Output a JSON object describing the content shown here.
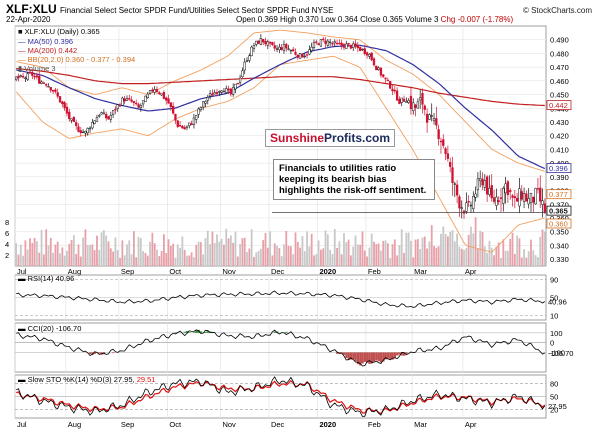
{
  "header": {
    "symbol": "XLF:XLU",
    "description": "Financial Select Sector SPDR Fund/Utilities Select Sector SPDR Fund NYSE",
    "date": "22-Apr-2020",
    "open": "Open 0.369",
    "high": "High 0.370",
    "low": "Low 0.364",
    "close": "Close 0.365",
    "volume": "Volume 3",
    "change": "Chg -0.007 (-1.78%)",
    "credit": "© StockCharts.com"
  },
  "legend": {
    "main": "XLF:XLU (Daily) 0.365",
    "ma50": "MA(50) 0.396",
    "ma200": "MA(200) 0.442",
    "bb": "BB(20,2.0) 0.360 - 0.377 - 0.394",
    "volume": "Volume 3"
  },
  "annotations": {
    "brand_a": "Sunshine",
    "brand_b": "Profits.com",
    "note": "Financials to utilities ratio keeping its bearish bias highlights the risk-off sentiment."
  },
  "colors": {
    "up": "#111111",
    "down": "#d01030",
    "ma50": "#3030a0",
    "ma200": "#c02020",
    "bb": "#f0a060",
    "volume": "#c8c8c8",
    "volume_down": "#e8a0a8",
    "rsi": "#000000",
    "positive_fill": "#3a8a3a",
    "negative_fill": "#c05050",
    "sto_k": "#000000",
    "sto_d": "#e01010"
  },
  "chart_data": [
    {
      "type": "candlestick",
      "title": "XLF:XLU (Daily)",
      "x_labels": [
        "Jul",
        "Aug",
        "Sep",
        "Oct",
        "Nov",
        "Dec",
        "2020",
        "Feb",
        "Mar",
        "Apr"
      ],
      "ylim": [
        0.325,
        0.5
      ],
      "yticks": [
        0.33,
        0.34,
        0.35,
        0.36,
        0.37,
        0.38,
        0.39,
        0.4,
        0.41,
        0.42,
        0.43,
        0.44,
        0.45,
        0.46,
        0.47,
        0.48,
        0.49
      ],
      "close_path": [
        0.462,
        0.462,
        0.465,
        0.46,
        0.458,
        0.452,
        0.443,
        0.432,
        0.425,
        0.422,
        0.43,
        0.437,
        0.432,
        0.44,
        0.447,
        0.445,
        0.44,
        0.448,
        0.455,
        0.45,
        0.443,
        0.428,
        0.425,
        0.43,
        0.44,
        0.448,
        0.452,
        0.455,
        0.45,
        0.46,
        0.475,
        0.486,
        0.49,
        0.486,
        0.483,
        0.485,
        0.482,
        0.478,
        0.48,
        0.487,
        0.489,
        0.488,
        0.486,
        0.486,
        0.485,
        0.483,
        0.48,
        0.47,
        0.462,
        0.455,
        0.445,
        0.447,
        0.44,
        0.445,
        0.43,
        0.425,
        0.41,
        0.385,
        0.37,
        0.365,
        0.38,
        0.39,
        0.372,
        0.376,
        0.385,
        0.37,
        0.378,
        0.372,
        0.377,
        0.365
      ],
      "ma50": [
        0.468,
        0.464,
        0.455,
        0.447,
        0.442,
        0.438,
        0.44,
        0.447,
        0.451,
        0.462,
        0.472,
        0.481,
        0.485,
        0.486,
        0.482,
        0.472,
        0.458,
        0.44,
        0.424,
        0.405,
        0.396
      ],
      "ma200": [
        0.469,
        0.467,
        0.464,
        0.46,
        0.458,
        0.458,
        0.459,
        0.46,
        0.461,
        0.462,
        0.463,
        0.463,
        0.463,
        0.461,
        0.458,
        0.455,
        0.451,
        0.448,
        0.445,
        0.443,
        0.442
      ],
      "bb_upper": [
        0.474,
        0.47,
        0.455,
        0.45,
        0.455,
        0.45,
        0.46,
        0.468,
        0.478,
        0.495,
        0.497,
        0.495,
        0.492,
        0.49,
        0.475,
        0.465,
        0.45,
        0.43,
        0.41,
        0.4,
        0.394
      ],
      "bb_lower": [
        0.452,
        0.43,
        0.418,
        0.422,
        0.425,
        0.42,
        0.432,
        0.44,
        0.445,
        0.455,
        0.472,
        0.475,
        0.478,
        0.47,
        0.44,
        0.41,
        0.375,
        0.34,
        0.335,
        0.355,
        0.36
      ],
      "price_tags": [
        "0.442",
        "0.396",
        "0.377",
        "0.365",
        "0.360"
      ],
      "volume_axis": [
        "2",
        "4",
        "6",
        "8"
      ]
    },
    {
      "type": "line",
      "title": "RSI(14) 40.96",
      "label": "RSI(14) 40.96",
      "ylim": [
        0,
        100
      ],
      "yticks": [
        10,
        50,
        90
      ],
      "values": [
        56,
        54,
        50,
        45,
        40,
        42,
        50,
        55,
        57,
        58,
        60,
        58,
        55,
        46,
        34,
        30,
        38,
        44,
        40,
        46,
        41
      ],
      "last_tag": "40.96"
    },
    {
      "type": "area",
      "title": "CCI(20) -106.70",
      "label": "CCI(20) -106.70",
      "ylim": [
        -300,
        200
      ],
      "yticks": [
        -100,
        0,
        100
      ],
      "values": [
        80,
        40,
        -50,
        -120,
        -80,
        20,
        90,
        120,
        70,
        60,
        110,
        40,
        -80,
        -220,
        -180,
        -90,
        -60,
        60,
        -20,
        30,
        -107
      ],
      "last_tag": "-106.70"
    },
    {
      "type": "line",
      "title": "Slow STO %K(14) %D(3) 27.95, 29.51",
      "label_prefix": "Slow STO %K(14) %D(3) 27.95,",
      "label_d": "29.51",
      "ylim": [
        0,
        100
      ],
      "yticks": [
        20,
        50,
        80
      ],
      "k": [
        60,
        40,
        25,
        15,
        30,
        60,
        80,
        85,
        60,
        70,
        88,
        75,
        30,
        12,
        18,
        40,
        55,
        45,
        35,
        50,
        28
      ],
      "d": [
        55,
        45,
        30,
        20,
        25,
        50,
        72,
        82,
        68,
        68,
        80,
        78,
        40,
        18,
        16,
        35,
        50,
        48,
        38,
        45,
        30
      ],
      "last_tag": "27.95",
      "x_labels": [
        "Jul",
        "Aug",
        "Sep",
        "Oct",
        "Nov",
        "Dec",
        "2020",
        "Feb",
        "Mar",
        "Apr"
      ]
    }
  ]
}
